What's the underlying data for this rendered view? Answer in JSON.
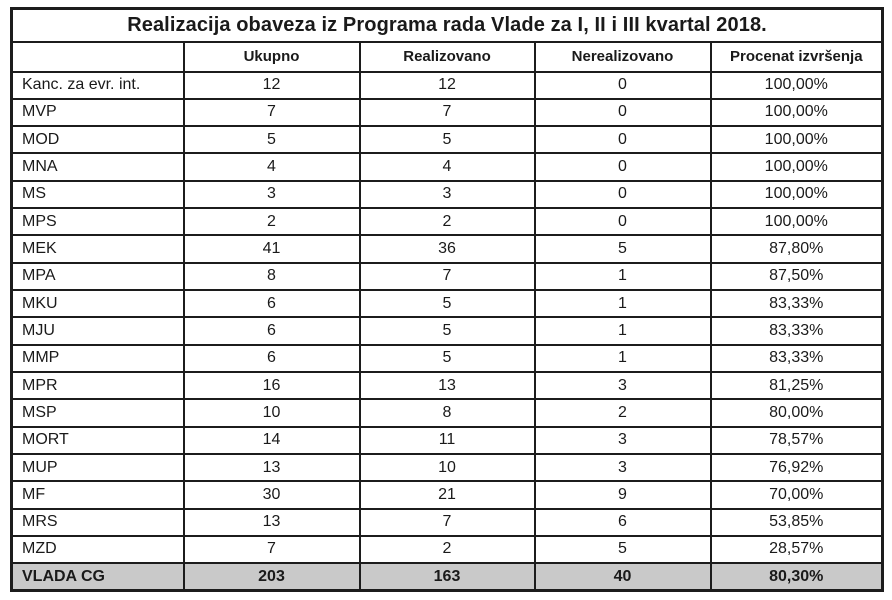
{
  "table": {
    "title": "Realizacija obaveza iz Programa rada Vlade za I, II i III kvartal 2018.",
    "columns": [
      "",
      "Ukupno",
      "Realizovano",
      "Nerealizovano",
      "Procenat izvršenja"
    ],
    "rows": [
      {
        "label": "Kanc. za evr. int.",
        "ukupno": "12",
        "realizovano": "12",
        "nerealizovano": "0",
        "procenat": "100,00%"
      },
      {
        "label": "MVP",
        "ukupno": "7",
        "realizovano": "7",
        "nerealizovano": "0",
        "procenat": "100,00%"
      },
      {
        "label": "MOD",
        "ukupno": "5",
        "realizovano": "5",
        "nerealizovano": "0",
        "procenat": "100,00%"
      },
      {
        "label": "MNA",
        "ukupno": "4",
        "realizovano": "4",
        "nerealizovano": "0",
        "procenat": "100,00%"
      },
      {
        "label": "MS",
        "ukupno": "3",
        "realizovano": "3",
        "nerealizovano": "0",
        "procenat": "100,00%"
      },
      {
        "label": "MPS",
        "ukupno": "2",
        "realizovano": "2",
        "nerealizovano": "0",
        "procenat": "100,00%"
      },
      {
        "label": "MEK",
        "ukupno": "41",
        "realizovano": "36",
        "nerealizovano": "5",
        "procenat": "87,80%"
      },
      {
        "label": "MPA",
        "ukupno": "8",
        "realizovano": "7",
        "nerealizovano": "1",
        "procenat": "87,50%"
      },
      {
        "label": "MKU",
        "ukupno": "6",
        "realizovano": "5",
        "nerealizovano": "1",
        "procenat": "83,33%"
      },
      {
        "label": "MJU",
        "ukupno": "6",
        "realizovano": "5",
        "nerealizovano": "1",
        "procenat": "83,33%"
      },
      {
        "label": "MMP",
        "ukupno": "6",
        "realizovano": "5",
        "nerealizovano": "1",
        "procenat": "83,33%"
      },
      {
        "label": "MPR",
        "ukupno": "16",
        "realizovano": "13",
        "nerealizovano": "3",
        "procenat": "81,25%"
      },
      {
        "label": "MSP",
        "ukupno": "10",
        "realizovano": "8",
        "nerealizovano": "2",
        "procenat": "80,00%"
      },
      {
        "label": "MORT",
        "ukupno": "14",
        "realizovano": "11",
        "nerealizovano": "3",
        "procenat": "78,57%"
      },
      {
        "label": "MUP",
        "ukupno": "13",
        "realizovano": "10",
        "nerealizovano": "3",
        "procenat": "76,92%"
      },
      {
        "label": "MF",
        "ukupno": "30",
        "realizovano": "21",
        "nerealizovano": "9",
        "procenat": "70,00%"
      },
      {
        "label": "MRS",
        "ukupno": "13",
        "realizovano": "7",
        "nerealizovano": "6",
        "procenat": "53,85%"
      },
      {
        "label": "MZD",
        "ukupno": "7",
        "realizovano": "2",
        "nerealizovano": "5",
        "procenat": "28,57%"
      }
    ],
    "total_row": {
      "label": "VLADA CG",
      "ukupno": "203",
      "realizovano": "163",
      "nerealizovano": "40",
      "procenat": "80,30%"
    }
  },
  "colors": {
    "border": "#1c1c1c",
    "text": "#1a1a1a",
    "total_row_bg": "#c9c9c9",
    "page_bg": "#ffffff"
  }
}
